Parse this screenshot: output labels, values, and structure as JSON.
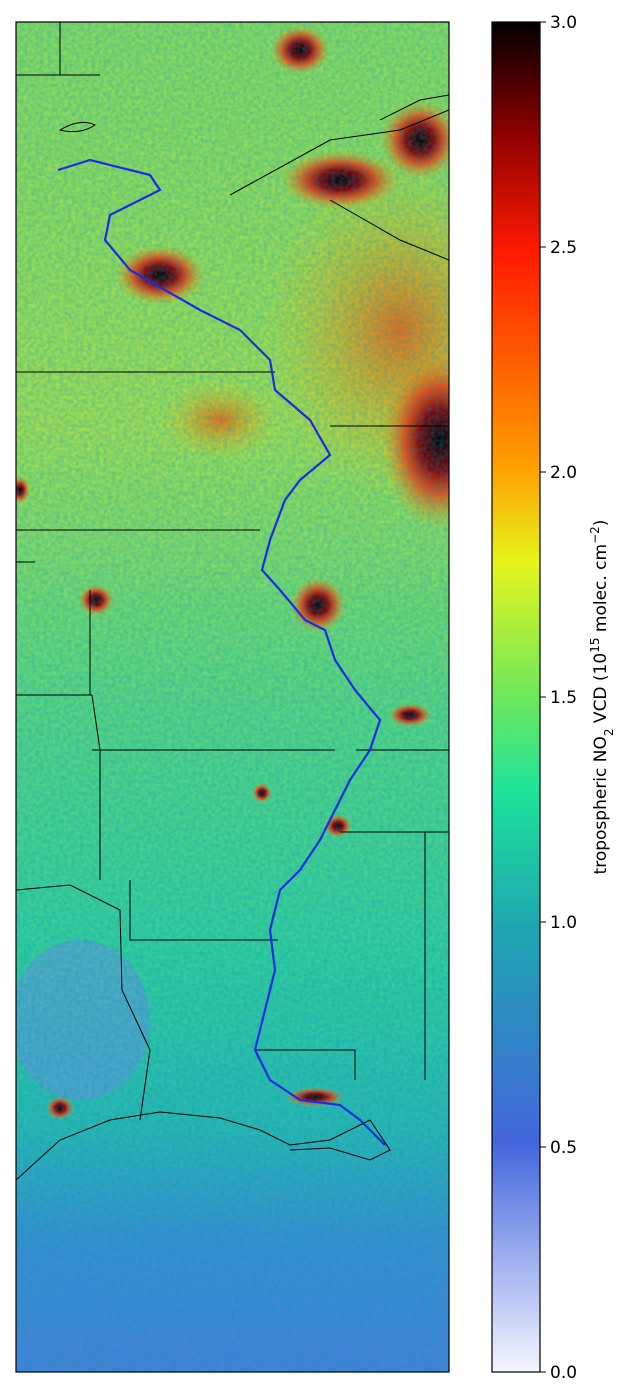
{
  "colorbar": {
    "label": [
      "tropospheric NO",
      "2",
      " VCD (10",
      "15",
      " molec. cm",
      "−2",
      ")"
    ],
    "lim": [
      0,
      3
    ],
    "ticks": [
      {
        "value": 0,
        "label": "0.0"
      },
      0.5,
      {
        "value": 1,
        "label": "1.0"
      },
      1.5,
      {
        "value": 2,
        "label": "2.0"
      },
      2.5,
      {
        "value": 3,
        "label": "3.0"
      }
    ]
  }
}
